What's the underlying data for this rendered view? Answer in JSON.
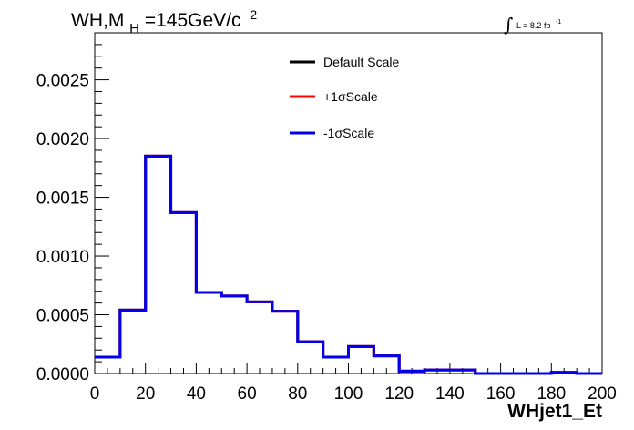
{
  "chart_data": {
    "type": "line",
    "step": true,
    "title_main": "WH,M",
    "title_sub": "H",
    "title_rest": "=145GeV/c",
    "title_sup": "2",
    "lumi_prefix": "L = 8.2 fb",
    "lumi_sup": "-1",
    "xlabel": "WHjet1_Et",
    "ylabel": "",
    "xlim": [
      0,
      200
    ],
    "ylim": [
      0,
      0.0029
    ],
    "xticks": [
      0,
      20,
      40,
      60,
      80,
      100,
      120,
      140,
      160,
      180,
      200
    ],
    "xtick_labels": [
      "0",
      "20",
      "40",
      "60",
      "80",
      "100",
      "120",
      "140",
      "160",
      "180",
      "200"
    ],
    "yticks": [
      0,
      0.0005,
      0.001,
      0.0015,
      0.002,
      0.0025
    ],
    "ytick_labels": [
      "0.0000",
      "0.0005",
      "0.0010",
      "0.0015",
      "0.0020",
      "0.0025"
    ],
    "bin_edges": [
      0,
      10,
      20,
      30,
      40,
      50,
      60,
      70,
      80,
      90,
      100,
      110,
      120,
      130,
      140,
      150,
      160,
      170,
      180,
      190,
      200
    ],
    "legend_position": "top-center",
    "grid": false,
    "series": [
      {
        "name": "Default Scale",
        "color": "#000000",
        "values": [
          0.00014,
          0.00054,
          0.00185,
          0.00137,
          0.00069,
          0.00066,
          0.00061,
          0.00053,
          0.00027,
          0.00014,
          0.00023,
          0.00015,
          2e-05,
          3e-05,
          3e-05,
          0.0,
          0.0,
          0.0,
          1e-05,
          0.0
        ]
      },
      {
        "name": "+1σScale",
        "color": "#ff0000",
        "values": [
          0.00014,
          0.00054,
          0.00185,
          0.00137,
          0.00069,
          0.00066,
          0.00061,
          0.00053,
          0.00027,
          0.00014,
          0.00023,
          0.00015,
          2e-05,
          3e-05,
          3e-05,
          0.0,
          0.0,
          0.0,
          1e-05,
          0.0
        ]
      },
      {
        "name": "-1σScale",
        "color": "#0000ee",
        "values": [
          0.00014,
          0.00054,
          0.00185,
          0.00137,
          0.00069,
          0.00066,
          0.00061,
          0.00053,
          0.00027,
          0.00014,
          0.00023,
          0.00015,
          2e-05,
          3e-05,
          3e-05,
          0.0,
          0.0,
          0.0,
          1e-05,
          0.0
        ]
      }
    ]
  }
}
